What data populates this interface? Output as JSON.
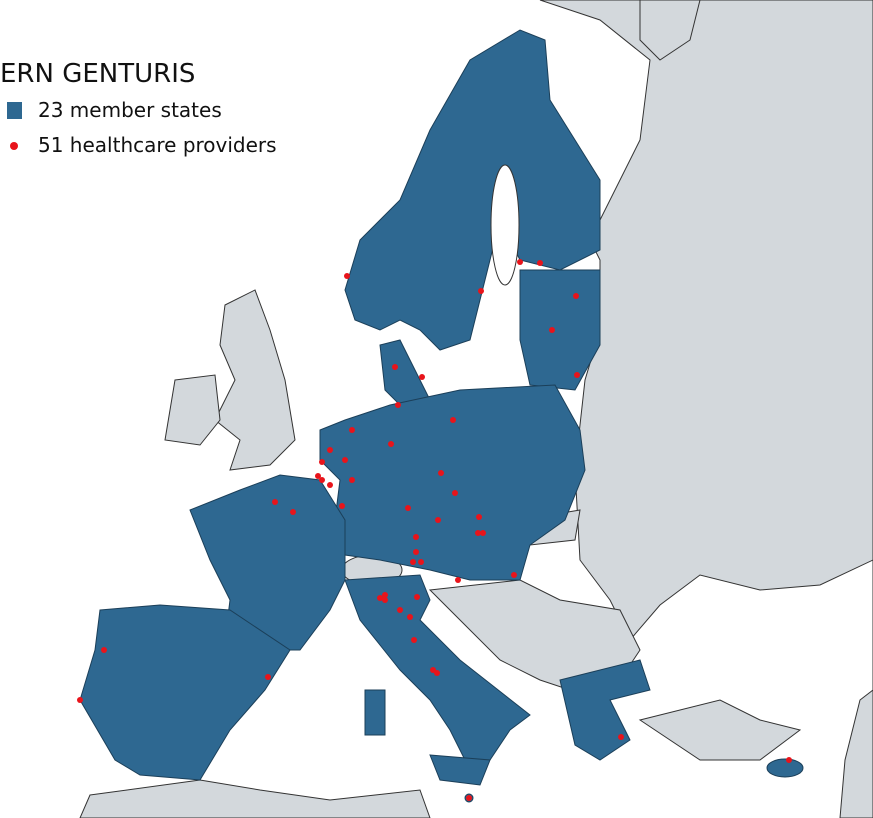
{
  "legend": {
    "title": "ERN GENTURIS",
    "items": [
      {
        "label": "23 member states"
      },
      {
        "label": "51 healthcare providers"
      }
    ]
  }
}
